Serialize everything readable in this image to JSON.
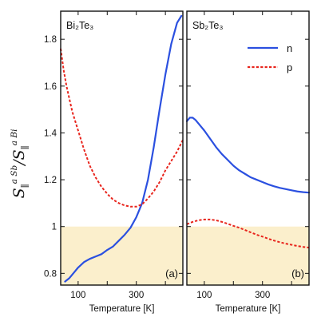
{
  "figure": {
    "y_axis_label": {
      "main": "S",
      "sub": "∥",
      "sup_num": "a Sb",
      "sup_den": "a Bi",
      "slash": "/"
    },
    "colors": {
      "n": "#2b50e0",
      "p": "#e8241c",
      "shade": "#fbefcc",
      "frame": "#111111"
    }
  },
  "chart_data": [
    {
      "type": "line",
      "panel_title": "Bi₂Te₃",
      "panel_tag": "(a)",
      "xlabel": "Temperature [K]",
      "ylabel": "S∥^{a Sb} / S∥^{a Bi}",
      "xlim": [
        40,
        460
      ],
      "ylim": [
        0.75,
        1.92
      ],
      "x_ticks": [
        100,
        200,
        300,
        400
      ],
      "x_tick_labels": [
        "100",
        "",
        "300",
        ""
      ],
      "y_ticks": [
        0.8,
        1.0,
        1.2,
        1.4,
        1.6,
        1.8
      ],
      "y_tick_labels": [
        "0.8",
        "1",
        "1.2",
        "1.4",
        "1.6",
        "1.8"
      ],
      "shaded_region": {
        "y_from": 0.75,
        "y_to": 1.0
      },
      "legend": false,
      "series": [
        {
          "name": "n",
          "style": "solid",
          "color": "#2b50e0",
          "x": [
            55,
            60,
            70,
            80,
            90,
            100,
            120,
            140,
            160,
            180,
            200,
            220,
            240,
            260,
            280,
            300,
            320,
            340,
            360,
            380,
            400,
            420,
            440,
            455
          ],
          "y": [
            0.765,
            0.77,
            0.78,
            0.795,
            0.81,
            0.825,
            0.848,
            0.862,
            0.872,
            0.882,
            0.9,
            0.915,
            0.94,
            0.965,
            0.995,
            1.04,
            1.1,
            1.2,
            1.34,
            1.5,
            1.65,
            1.78,
            1.87,
            1.9
          ]
        },
        {
          "name": "p",
          "style": "dashed",
          "color": "#e8241c",
          "x": [
            40,
            50,
            60,
            80,
            100,
            120,
            140,
            160,
            180,
            200,
            220,
            240,
            260,
            280,
            300,
            320,
            340,
            360,
            380,
            400,
            420,
            440,
            460
          ],
          "y": [
            1.76,
            1.67,
            1.6,
            1.49,
            1.41,
            1.33,
            1.26,
            1.21,
            1.17,
            1.14,
            1.115,
            1.1,
            1.09,
            1.085,
            1.085,
            1.095,
            1.12,
            1.15,
            1.19,
            1.24,
            1.28,
            1.32,
            1.37
          ]
        }
      ]
    },
    {
      "type": "line",
      "panel_title": "Sb₂Te₃",
      "panel_tag": "(b)",
      "xlabel": "Temperature [K]",
      "ylabel": "",
      "xlim": [
        40,
        460
      ],
      "ylim": [
        0.75,
        1.92
      ],
      "x_ticks": [
        100,
        200,
        300,
        400
      ],
      "x_tick_labels": [
        "100",
        "",
        "300",
        ""
      ],
      "y_ticks": [
        0.8,
        1.0,
        1.2,
        1.4,
        1.6,
        1.8
      ],
      "y_tick_labels": [],
      "shaded_region": {
        "y_from": 0.75,
        "y_to": 1.0
      },
      "legend": true,
      "legend_position": "top-right",
      "legend_entries": [
        {
          "label": "n",
          "style": "solid",
          "color": "#2b50e0"
        },
        {
          "label": "p",
          "style": "dashed",
          "color": "#e8241c"
        }
      ],
      "series": [
        {
          "name": "n",
          "style": "solid",
          "color": "#2b50e0",
          "x": [
            40,
            50,
            60,
            70,
            80,
            100,
            120,
            140,
            160,
            180,
            200,
            220,
            240,
            260,
            280,
            300,
            320,
            340,
            360,
            380,
            400,
            420,
            440,
            460
          ],
          "y": [
            1.45,
            1.465,
            1.465,
            1.455,
            1.44,
            1.41,
            1.375,
            1.34,
            1.31,
            1.285,
            1.26,
            1.24,
            1.225,
            1.21,
            1.2,
            1.19,
            1.18,
            1.172,
            1.165,
            1.16,
            1.155,
            1.15,
            1.147,
            1.145
          ]
        },
        {
          "name": "p",
          "style": "dashed",
          "color": "#e8241c",
          "x": [
            40,
            60,
            80,
            100,
            120,
            140,
            160,
            180,
            200,
            220,
            240,
            260,
            280,
            300,
            320,
            340,
            360,
            380,
            400,
            420,
            440,
            460
          ],
          "y": [
            1.01,
            1.02,
            1.027,
            1.03,
            1.03,
            1.027,
            1.02,
            1.012,
            1.003,
            0.995,
            0.985,
            0.975,
            0.965,
            0.957,
            0.948,
            0.94,
            0.933,
            0.927,
            0.922,
            0.917,
            0.913,
            0.91
          ]
        }
      ]
    }
  ]
}
